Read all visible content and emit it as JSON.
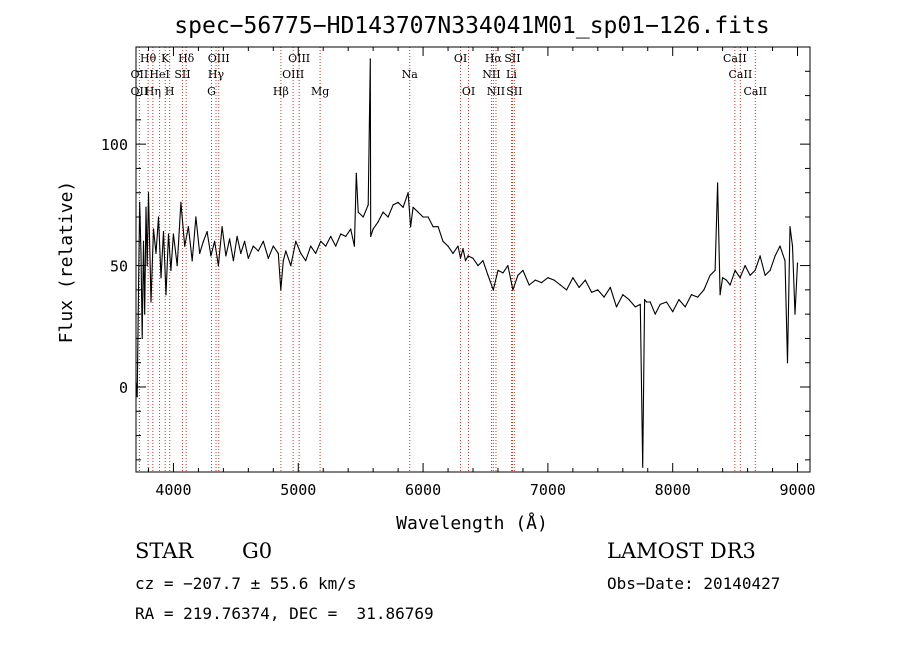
{
  "chart_data": {
    "type": "line",
    "title": "spec−56775−HD143707N334041M01_sp01−126.fits",
    "xlabel": "Wavelength (Å)",
    "ylabel": "Flux (relative)",
    "xlim": [
      3700,
      9100
    ],
    "ylim": [
      -35,
      140
    ],
    "xticks": [
      4000,
      5000,
      6000,
      7000,
      8000,
      9000
    ],
    "yticks": [
      0,
      50,
      100
    ],
    "series": [
      {
        "name": "flux",
        "x": [
          3700,
          3710,
          3720,
          3730,
          3740,
          3750,
          3760,
          3770,
          3780,
          3790,
          3800,
          3820,
          3840,
          3860,
          3880,
          3900,
          3920,
          3940,
          3960,
          3980,
          4000,
          4030,
          4060,
          4090,
          4120,
          4150,
          4180,
          4210,
          4240,
          4270,
          4300,
          4330,
          4360,
          4390,
          4420,
          4450,
          4480,
          4510,
          4540,
          4570,
          4600,
          4640,
          4680,
          4720,
          4760,
          4800,
          4840,
          4860,
          4880,
          4900,
          4940,
          4980,
          5020,
          5060,
          5100,
          5140,
          5180,
          5220,
          5260,
          5300,
          5340,
          5380,
          5420,
          5450,
          5465,
          5480,
          5520,
          5560,
          5577,
          5580,
          5600,
          5640,
          5680,
          5720,
          5760,
          5800,
          5840,
          5880,
          5900,
          5920,
          5960,
          6000,
          6040,
          6080,
          6120,
          6160,
          6200,
          6240,
          6280,
          6300,
          6320,
          6340,
          6360,
          6400,
          6440,
          6480,
          6520,
          6563,
          6600,
          6640,
          6680,
          6720,
          6760,
          6800,
          6850,
          6900,
          6950,
          7000,
          7050,
          7100,
          7150,
          7200,
          7250,
          7300,
          7350,
          7400,
          7450,
          7500,
          7550,
          7600,
          7650,
          7700,
          7740,
          7760,
          7775,
          7790,
          7820,
          7860,
          7900,
          7950,
          8000,
          8050,
          8100,
          8150,
          8200,
          8250,
          8300,
          8340,
          8360,
          8380,
          8400,
          8430,
          8460,
          8500,
          8540,
          8580,
          8620,
          8660,
          8700,
          8740,
          8780,
          8820,
          8860,
          8900,
          8920,
          8940,
          8960,
          8980,
          9000
        ],
        "y": [
          2,
          -4,
          40,
          76,
          55,
          20,
          60,
          30,
          74,
          50,
          80,
          35,
          65,
          55,
          70,
          45,
          64,
          38,
          63,
          48,
          63,
          50,
          76,
          58,
          66,
          52,
          70,
          55,
          60,
          64,
          54,
          60,
          50,
          66,
          54,
          61,
          52,
          62,
          55,
          60,
          53,
          58,
          56,
          60,
          53,
          58,
          55,
          40,
          52,
          56,
          50,
          60,
          55,
          52,
          58,
          55,
          60,
          58,
          62,
          58,
          63,
          62,
          65,
          58,
          88,
          72,
          70,
          75,
          135,
          62,
          65,
          68,
          72,
          70,
          75,
          76,
          74,
          80,
          66,
          74,
          72,
          70,
          70,
          66,
          66,
          60,
          58,
          55,
          58,
          53,
          57,
          52,
          54,
          53,
          50,
          52,
          46,
          40,
          48,
          47,
          50,
          40,
          46,
          48,
          42,
          44,
          43,
          45,
          44,
          42,
          40,
          45,
          41,
          44,
          39,
          40,
          37,
          41,
          33,
          38,
          36,
          33,
          34,
          -33,
          36,
          35,
          35,
          30,
          34,
          35,
          31,
          36,
          33,
          38,
          37,
          40,
          46,
          48,
          84,
          38,
          45,
          44,
          42,
          48,
          45,
          50,
          46,
          48,
          54,
          46,
          48,
          54,
          58,
          52,
          10,
          66,
          58,
          30,
          51
        ]
      }
    ],
    "line_labels": [
      {
        "wavelength": 3797,
        "label": "Hθ",
        "row": 1
      },
      {
        "wavelength": 3727,
        "label": "OII",
        "row": 2
      },
      {
        "wavelength": 3727,
        "label": "OII",
        "row": 3
      },
      {
        "wavelength": 3934,
        "label": "K",
        "row": 1
      },
      {
        "wavelength": 3889,
        "label": "HeI",
        "row": 2
      },
      {
        "wavelength": 3835,
        "label": "Hη",
        "row": 3
      },
      {
        "wavelength": 4102,
        "label": "Hδ",
        "row": 1
      },
      {
        "wavelength": 4072,
        "label": "SII",
        "row": 2
      },
      {
        "wavelength": 3970,
        "label": "H",
        "row": 3
      },
      {
        "wavelength": 4363,
        "label": "OIII",
        "row": 1
      },
      {
        "wavelength": 4341,
        "label": "Hγ",
        "row": 2
      },
      {
        "wavelength": 4305,
        "label": "G",
        "row": 3
      },
      {
        "wavelength": 4861,
        "label": "Hβ",
        "row": 3
      },
      {
        "wavelength": 5007,
        "label": "OIII",
        "row": 1
      },
      {
        "wavelength": 4959,
        "label": "OIII",
        "row": 2
      },
      {
        "wavelength": 5175,
        "label": "Mg",
        "row": 3
      },
      {
        "wavelength": 5893,
        "label": "Na",
        "row": 2
      },
      {
        "wavelength": 6300,
        "label": "OI",
        "row": 1
      },
      {
        "wavelength": 6364,
        "label": "OI",
        "row": 3
      },
      {
        "wavelength": 6563,
        "label": "Hα",
        "row": 1
      },
      {
        "wavelength": 6716,
        "label": "SII",
        "row": 1
      },
      {
        "wavelength": 6548,
        "label": "NII",
        "row": 2
      },
      {
        "wavelength": 6708,
        "label": "Li",
        "row": 2
      },
      {
        "wavelength": 6584,
        "label": "NII",
        "row": 3
      },
      {
        "wavelength": 6731,
        "label": "SII",
        "row": 3
      },
      {
        "wavelength": 8498,
        "label": "CaII",
        "row": 1
      },
      {
        "wavelength": 8542,
        "label": "CaII",
        "row": 2
      },
      {
        "wavelength": 8662,
        "label": "CaII",
        "row": 3
      }
    ],
    "marker_lines": [
      3727,
      3797,
      3835,
      3889,
      3934,
      3970,
      4072,
      4102,
      4305,
      4341,
      4363,
      4861,
      4959,
      5007,
      5175,
      5893,
      6300,
      6364,
      6548,
      6563,
      6584,
      6708,
      6716,
      6731,
      8498,
      8542,
      8662
    ],
    "marker_color": "#c0392b",
    "line_color": "#000000"
  },
  "info": {
    "object_type": "STAR",
    "subclass": "G0",
    "survey": "LAMOST DR3",
    "cz": "cz = −207.7 ± 55.6 km/s",
    "obs_date": "Obs−Date: 20140427",
    "coords": "RA = 219.76374, DEC =  31.86769"
  }
}
